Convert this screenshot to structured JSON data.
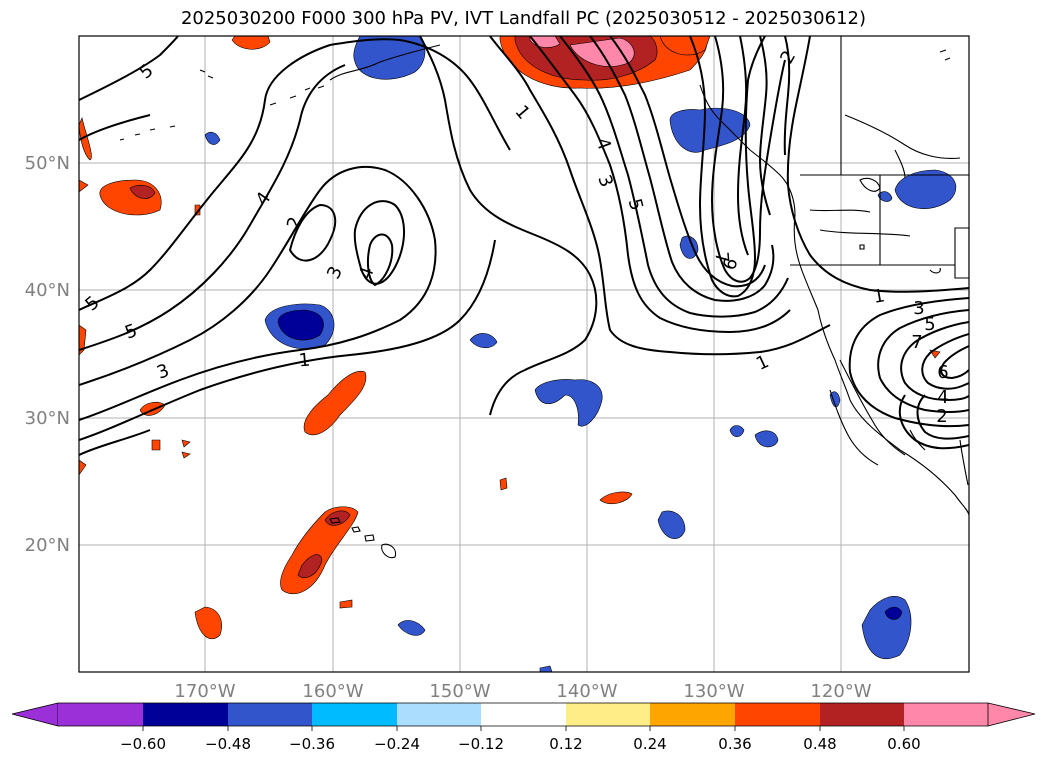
{
  "title": "2025030200 F000 300 hPa PV, IVT Landfall PC (2025030512 - 2025030612)",
  "lat_labels": [
    "50°N",
    "40°N",
    "30°N",
    "20°N"
  ],
  "lon_labels": [
    "170°W",
    "160°W",
    "150°W",
    "140°W",
    "130°W",
    "120°W"
  ],
  "colorbar": {
    "ticks": [
      "−0.60",
      "−0.48",
      "−0.36",
      "−0.24",
      "−0.12",
      "0.12",
      "0.24",
      "0.36",
      "0.48",
      "0.60"
    ],
    "under_color": "#9b30d9",
    "over_color": "#ff88aa",
    "colors": [
      "#000099",
      "#3355cc",
      "#00bbff",
      "#aaddff",
      "#ffffff",
      "#ffee88",
      "#ffa500",
      "#ff4500",
      "#b22222"
    ]
  },
  "contour_labels": [
    "5",
    "5",
    "4",
    "2",
    "3",
    "4",
    "5",
    "3",
    "1",
    "1",
    "4",
    "3",
    "5",
    "6",
    "7",
    "2",
    "1",
    "1",
    "3",
    "5",
    "7",
    "6",
    "4",
    "2"
  ]
}
